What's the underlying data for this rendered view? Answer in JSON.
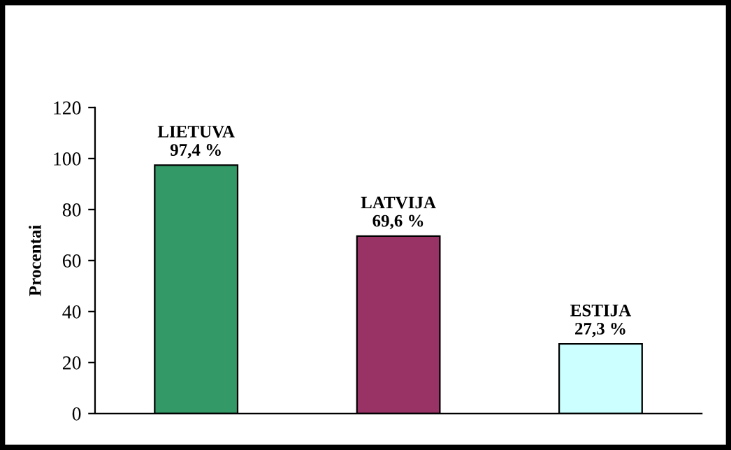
{
  "chart_data": {
    "type": "bar",
    "ylabel": "Procentai",
    "categories": [
      null,
      null,
      null
    ],
    "values": [
      97.4,
      69.6,
      27.3
    ],
    "colors": [
      "#339966",
      "#993366",
      "#ccffff"
    ],
    "value_labels": [
      "LIETUVA\n97,4 %",
      "LATVIJA\n69,6 %",
      "ESTIJA\n27,3 %"
    ],
    "ylim": [
      0,
      120
    ],
    "yticks": [
      0,
      20,
      40,
      60,
      80,
      100,
      120
    ],
    "tick_labels": "y",
    "grid": false,
    "legend": false
  }
}
